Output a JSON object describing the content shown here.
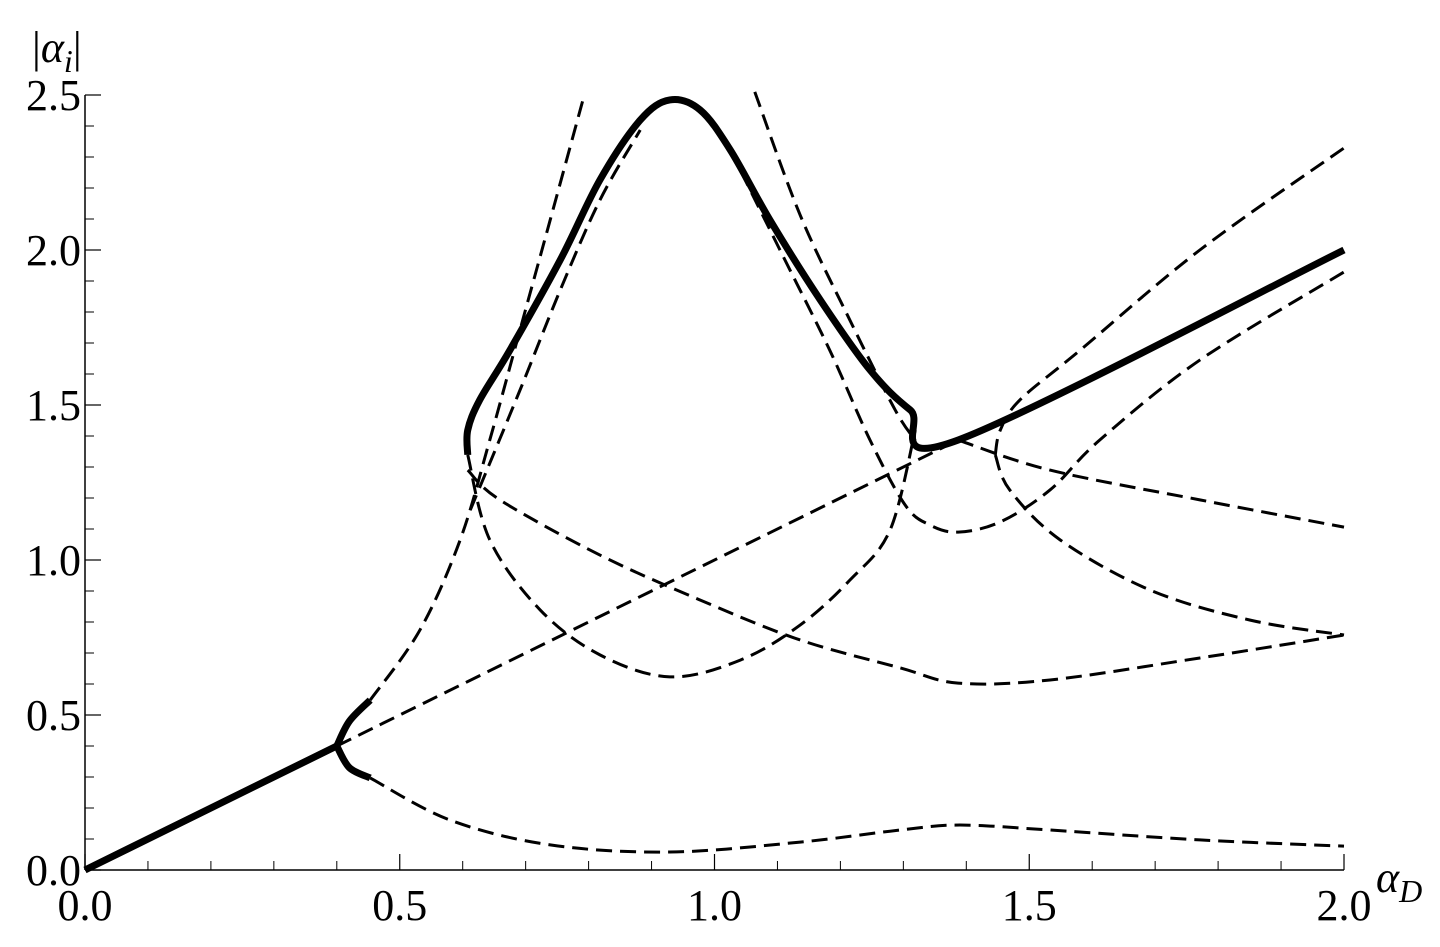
{
  "chart_data": {
    "type": "line",
    "xlabel": {
      "symbol": "α",
      "sub": "D"
    },
    "ylabel": {
      "left": "|",
      "symbol": "α",
      "sub": "i",
      "right": "|"
    },
    "xlim": [
      0,
      2
    ],
    "ylim": [
      0,
      2.5
    ],
    "xticks": [
      {
        "value": 0,
        "label": "0.0"
      },
      0.5,
      {
        "value": 1,
        "label": "1.0"
      },
      1.5,
      {
        "value": 2,
        "label": "2.0"
      }
    ],
    "yticks": [
      {
        "value": 0,
        "label": "0.0"
      },
      0.5,
      {
        "value": 1,
        "label": "1.0"
      },
      1.5,
      {
        "value": 2,
        "label": "2.0"
      },
      2.5
    ],
    "xminorticks": [
      0.1,
      0.2,
      0.3,
      0.4,
      0.6,
      0.7,
      0.8,
      0.9,
      1.1,
      1.2,
      1.3,
      1.4,
      1.6,
      1.7,
      1.8,
      1.9
    ],
    "yminorticks": [
      0.1,
      0.2,
      0.3,
      0.4,
      0.6,
      0.7,
      0.8,
      0.9,
      1.1,
      1.2,
      1.3,
      1.4,
      1.6,
      1.7,
      1.8,
      1.9,
      2.1,
      2.2,
      2.3,
      2.4
    ],
    "series": [
      {
        "style": "solid",
        "color": "#000000",
        "x": [
          0,
          0.4
        ],
        "values": [
          0,
          0.4
        ]
      },
      {
        "style": "solid",
        "color": "#000000",
        "x": [
          0.4,
          0.42,
          0.453
        ],
        "values": [
          0.4,
          0.48,
          0.548
        ]
      },
      {
        "style": "solid",
        "color": "#000000",
        "x": [
          0.4,
          0.42,
          0.453
        ],
        "values": [
          0.4,
          0.33,
          0.297
        ]
      },
      {
        "style": "solid",
        "color": "#000000",
        "x": [
          0.608,
          0.608,
          0.627,
          0.675,
          0.755,
          0.818,
          0.882,
          0.929,
          0.977,
          1.025,
          1.088,
          1.168,
          1.247,
          1.311,
          1.387,
          2.0
        ],
        "values": [
          1.339,
          1.419,
          1.516,
          1.677,
          1.968,
          2.226,
          2.419,
          2.484,
          2.452,
          2.323,
          2.097,
          1.839,
          1.613,
          1.484,
          1.387,
          2.0
        ]
      },
      {
        "style": "dashed",
        "color": "#000000",
        "x": [
          0.453,
          0.58,
          0.739,
          0.929,
          1.136,
          1.295,
          1.39,
          1.533,
          1.771,
          2.0
        ],
        "values": [
          0.297,
          0.161,
          0.081,
          0.058,
          0.09,
          0.129,
          0.145,
          0.129,
          0.097,
          0.077
        ]
      },
      {
        "style": "dashed",
        "color": "#000000",
        "x": [
          0.4,
          1.387
        ],
        "values": [
          0.4,
          1.387
        ]
      },
      {
        "style": "dashed",
        "color": "#000000",
        "x": [
          0.453,
          0.532,
          0.596,
          0.643,
          0.691,
          0.739,
          0.791
        ],
        "values": [
          0.548,
          0.774,
          1.065,
          1.387,
          1.742,
          2.097,
          2.484
        ]
      },
      {
        "style": "dashed",
        "color": "#000000",
        "x": [
          0.612,
          0.691,
          0.755,
          0.818,
          0.882
        ],
        "values": [
          1.161,
          1.548,
          1.871,
          2.161,
          2.387
        ]
      },
      {
        "style": "dashed",
        "color": "#000000",
        "x": [
          0.608,
          0.643,
          0.723,
          0.818,
          0.929,
          1.041,
          1.136,
          1.215,
          1.279,
          1.319
        ],
        "values": [
          1.339,
          1.065,
          0.839,
          0.694,
          0.623,
          0.677,
          0.79,
          0.935,
          1.097,
          1.419
        ]
      },
      {
        "style": "dashed",
        "color": "#000000",
        "x": [
          1.064,
          1.136,
          1.215,
          1.287,
          1.319
        ],
        "values": [
          2.51,
          2.113,
          1.774,
          1.484,
          1.387
        ]
      },
      {
        "style": "dashed",
        "color": "#000000",
        "x": [
          1.025,
          1.104,
          1.183,
          1.247,
          1.303,
          1.342,
          1.387,
          1.454,
          1.533,
          1.612,
          1.771,
          2.0
        ],
        "values": [
          2.323,
          2.0,
          1.677,
          1.387,
          1.177,
          1.113,
          1.09,
          1.123,
          1.226,
          1.387,
          1.645,
          1.929
        ]
      },
      {
        "style": "dashed",
        "color": "#000000",
        "x": [
          1.446,
          1.454,
          1.485,
          1.581,
          1.771,
          2.0
        ],
        "values": [
          1.339,
          1.419,
          1.516,
          1.677,
          2.0,
          2.329
        ]
      },
      {
        "style": "dashed",
        "color": "#000000",
        "x": [
          1.446,
          1.469,
          1.549,
          1.692,
          1.851,
          2.0
        ],
        "values": [
          1.339,
          1.226,
          1.065,
          0.903,
          0.806,
          0.758
        ]
      },
      {
        "style": "dashed",
        "color": "#000000",
        "x": [
          0.608,
          0.659,
          0.818,
          0.977,
          1.136,
          1.295,
          1.387,
          1.533,
          1.771,
          2.0
        ],
        "values": [
          1.29,
          1.194,
          1.016,
          0.871,
          0.742,
          0.652,
          0.603,
          0.613,
          0.684,
          0.758
        ]
      },
      {
        "style": "dashed",
        "color": "#000000",
        "x": [
          1.387,
          1.533,
          1.771,
          2.0
        ],
        "values": [
          1.387,
          1.29,
          1.194,
          1.106
        ]
      }
    ]
  }
}
